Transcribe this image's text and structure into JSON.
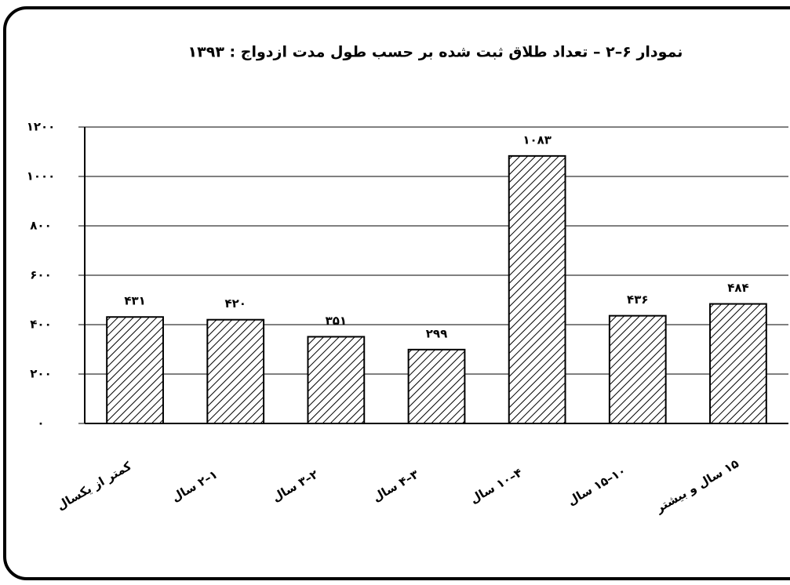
{
  "chart_data": {
    "type": "bar",
    "title": "نمودار ۶–۲ – تعداد طلاق ثبت شده بر حسب طول مدت ازدواج : ۱۳۹۳",
    "categories": [
      "کمتر از یکسال",
      "۱–۲ سال",
      "۲–۳ سال",
      "۳–۴ سال",
      "۴–۱۰ سال",
      "۱۰–۱۵ سال",
      "۱۵ سال و بیشتر"
    ],
    "values": [
      431,
      420,
      351,
      299,
      1083,
      436,
      484
    ],
    "value_labels": [
      "۴۳۱",
      "۴۲۰",
      "۳۵۱",
      "۲۹۹",
      "۱۰۸۳",
      "۴۳۶",
      "۴۸۴"
    ],
    "color": "#000000",
    "ylim": [
      0,
      1200
    ],
    "yticks": [
      {
        "value": 0,
        "label": "۰"
      },
      {
        "value": 200,
        "label": "۲۰۰"
      },
      {
        "value": 400,
        "label": "۴۰۰"
      },
      {
        "value": 600,
        "label": "۶۰۰"
      },
      {
        "value": 800,
        "label": "۸۰۰"
      },
      {
        "value": 1000,
        "label": "۱۰۰۰"
      },
      {
        "value": 1200,
        "label": "۱۲۰۰"
      }
    ],
    "grid": true
  }
}
